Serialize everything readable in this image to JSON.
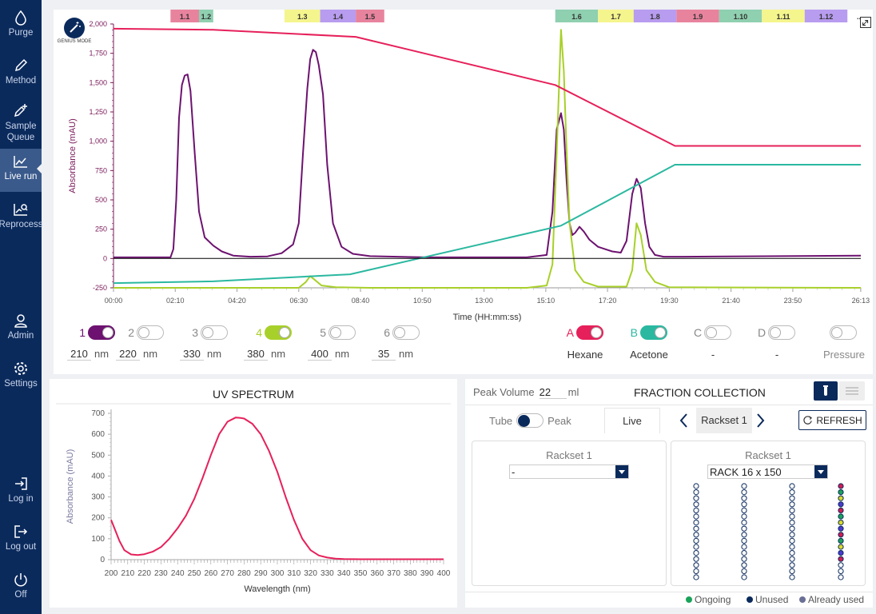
{
  "sidebar": {
    "items": [
      {
        "label": "Purge",
        "icon": "droplet-icon"
      },
      {
        "label": "Method",
        "icon": "pencil-icon"
      },
      {
        "label": "Sample Queue",
        "icon": "pencil-plus-icon"
      },
      {
        "label": "Live run",
        "icon": "line-chart-icon"
      },
      {
        "label": "Reprocess",
        "icon": "chart-search-icon"
      }
    ],
    "bottom": [
      {
        "label": "Admin",
        "icon": "user-icon"
      },
      {
        "label": "Settings",
        "icon": "gear-icon"
      },
      {
        "label": "Log in",
        "icon": "login-icon"
      },
      {
        "label": "Log out",
        "icon": "logout-icon"
      },
      {
        "label": "Off",
        "icon": "power-icon"
      }
    ]
  },
  "genius_mode": {
    "label": "GENIUS MODE",
    "icon": "wand-icon"
  },
  "expand_icon": "expand-icon",
  "fractions": [
    {
      "label": "1.1",
      "color": "#e8839e",
      "start": "02:00",
      "end": "03:00"
    },
    {
      "label": "1.2",
      "color": "#8fd0b0",
      "start": "03:00",
      "end": "03:30"
    },
    {
      "label": "1.3",
      "color": "#f5f58e",
      "start": "06:00",
      "end": "07:15"
    },
    {
      "label": "1.4",
      "color": "#b89cf0",
      "start": "07:15",
      "end": "08:30"
    },
    {
      "label": "1.5",
      "color": "#e8839e",
      "start": "08:30",
      "end": "09:30"
    },
    {
      "label": "1.6",
      "color": "#8fd0b0",
      "start": "15:30",
      "end": "17:00"
    },
    {
      "label": "1.7",
      "color": "#f5f58e",
      "start": "17:00",
      "end": "18:15"
    },
    {
      "label": "1.8",
      "color": "#b89cf0",
      "start": "18:15",
      "end": "19:45"
    },
    {
      "label": "1.9",
      "color": "#e8839e",
      "start": "19:45",
      "end": "21:15"
    },
    {
      "label": "1.10",
      "color": "#8fd0b0",
      "start": "21:15",
      "end": "22:45"
    },
    {
      "label": "1.11",
      "color": "#f5f58e",
      "start": "22:45",
      "end": "24:15"
    },
    {
      "label": "1.12",
      "color": "#b89cf0",
      "start": "24:15",
      "end": "25:45"
    }
  ],
  "fraction_overflow": "..",
  "chart_data": [
    {
      "type": "line",
      "title": "",
      "xlabel": "Time (HH:mm:ss)",
      "ylabel": "Absorbance (mAU)",
      "x_ticks": [
        "00:00",
        "02:10",
        "04:20",
        "06:30",
        "08:40",
        "10:50",
        "13:00",
        "15:10",
        "17:20",
        "19:30",
        "21:40",
        "23:50",
        "26:13"
      ],
      "y_ticks": [
        "2,000",
        "1,750",
        "1,500",
        "1,250",
        "1,000",
        "750",
        "500",
        "250",
        "0",
        "-250"
      ],
      "xlim_minutes": [
        0,
        26.22
      ],
      "ylim": [
        -250,
        2000
      ],
      "series": [
        {
          "color": "#6d1270",
          "x": [
            0,
            2,
            2.1,
            2.2,
            2.3,
            2.4,
            2.5,
            2.6,
            2.7,
            2.85,
            3,
            3.2,
            3.5,
            3.8,
            4.2,
            4.8,
            5.4,
            5.9,
            6.3,
            6.5,
            6.65,
            6.8,
            6.9,
            7.0,
            7.1,
            7.2,
            7.35,
            7.5,
            7.7,
            8.0,
            8.4,
            9,
            11,
            13,
            14.5,
            15.2,
            15.4,
            15.55,
            15.7,
            15.8,
            15.9,
            16.0,
            16.1,
            16.2,
            16.35,
            16.5,
            16.7,
            17.0,
            17.5,
            17.8,
            18.0,
            18.2,
            18.35,
            18.5,
            18.65,
            18.8,
            19.0,
            19.3,
            20,
            26.22
          ],
          "y": [
            10,
            10,
            80,
            500,
            1200,
            1480,
            1560,
            1570,
            1430,
            900,
            400,
            180,
            110,
            60,
            25,
            15,
            18,
            45,
            120,
            300,
            900,
            1450,
            1700,
            1780,
            1760,
            1650,
            1400,
            800,
            300,
            100,
            40,
            20,
            10,
            10,
            10,
            30,
            400,
            1100,
            1240,
            1100,
            650,
            300,
            200,
            220,
            270,
            230,
            160,
            100,
            60,
            50,
            150,
            550,
            680,
            600,
            300,
            100,
            30,
            15,
            15,
            25
          ]
        },
        {
          "color": "#a8d02a",
          "x": [
            0,
            6.5,
            6.75,
            6.9,
            7.05,
            7.3,
            7.8,
            9,
            14.5,
            15.2,
            15.4,
            15.55,
            15.7,
            15.8,
            15.9,
            16.0,
            16.2,
            16.5,
            17,
            18,
            18.2,
            18.35,
            18.5,
            18.7,
            19,
            19.5,
            26.22
          ],
          "y": [
            -250,
            -250,
            -200,
            -150,
            -180,
            -230,
            -245,
            -250,
            -250,
            -230,
            -50,
            900,
            1950,
            1600,
            900,
            300,
            -100,
            -200,
            -240,
            -240,
            -100,
            300,
            200,
            -100,
            -200,
            -245,
            -250
          ]
        },
        {
          "color": "#e6205a",
          "x": [
            0,
            3.5,
            8.5,
            15.5,
            19.7,
            26.22
          ],
          "y": [
            1960,
            1950,
            1890,
            1480,
            960,
            960
          ]
        },
        {
          "color": "#2ab8a0",
          "x": [
            0,
            3.5,
            8.3,
            15.7,
            19.7,
            26.22
          ],
          "y": [
            -210,
            -195,
            -135,
            280,
            800,
            800
          ]
        },
        {
          "color": "#000000",
          "x": [
            0,
            26.22
          ],
          "y": [
            0,
            0
          ]
        }
      ]
    },
    {
      "type": "line",
      "title": "UV SPECTRUM",
      "xlabel": "Wavelength (nm)",
      "ylabel": "Absorbance (mAU)",
      "x_ticks": [
        "200",
        "210",
        "220",
        "230",
        "240",
        "250",
        "260",
        "270",
        "280",
        "290",
        "300",
        "310",
        "320",
        "330",
        "340",
        "350",
        "360",
        "370",
        "380",
        "390",
        "400"
      ],
      "y_ticks": [
        "700",
        "600",
        "500",
        "400",
        "300",
        "200",
        "100",
        "0"
      ],
      "xlim": [
        200,
        400
      ],
      "ylim": [
        0,
        700
      ],
      "series": [
        {
          "color": "#e6205a",
          "x": [
            200,
            202,
            205,
            208,
            212,
            216,
            220,
            225,
            230,
            235,
            240,
            245,
            250,
            255,
            260,
            265,
            270,
            275,
            278,
            280,
            285,
            290,
            295,
            300,
            305,
            310,
            315,
            320,
            325,
            330,
            335,
            340,
            350,
            360,
            380,
            400
          ],
          "y": [
            190,
            150,
            90,
            45,
            25,
            22,
            26,
            38,
            60,
            100,
            150,
            210,
            290,
            390,
            500,
            600,
            660,
            680,
            678,
            675,
            650,
            600,
            520,
            420,
            300,
            190,
            100,
            45,
            20,
            10,
            5,
            3,
            2,
            2,
            2,
            2
          ]
        }
      ]
    }
  ],
  "detectors": [
    {
      "num": "1",
      "on": true,
      "color": "#6d1270",
      "nm": "210"
    },
    {
      "num": "2",
      "on": false,
      "color": "#888888",
      "nm": "220"
    },
    {
      "num": "3",
      "on": false,
      "color": "#888888",
      "nm": "330"
    },
    {
      "num": "4",
      "on": true,
      "color": "#a8d02a",
      "nm": "380"
    },
    {
      "num": "5",
      "on": false,
      "color": "#888888",
      "nm": "400"
    },
    {
      "num": "6",
      "on": false,
      "color": "#888888",
      "nm": "35"
    }
  ],
  "nm_unit": "nm",
  "solvents": [
    {
      "letter": "A",
      "on": true,
      "color": "#e6205a",
      "name": "Hexane"
    },
    {
      "letter": "B",
      "on": true,
      "color": "#2ab8a0",
      "name": "Acetone"
    },
    {
      "letter": "C",
      "on": false,
      "color": "#888888",
      "name": "-"
    },
    {
      "letter": "D",
      "on": false,
      "color": "#888888",
      "name": "-"
    }
  ],
  "pressure": {
    "name": "Pressure",
    "on": false
  },
  "fraction_collection": {
    "peak_volume_label": "Peak Volume",
    "peak_volume_value": "22",
    "unit": "ml",
    "title": "FRACTION COLLECTION",
    "tube_label": "Tube",
    "peak_label": "Peak",
    "live_tab": "Live",
    "rackset_tab": "Rackset 1",
    "refresh_label": "REFRESH",
    "left_rack": {
      "title": "Rackset 1",
      "select": "-"
    },
    "right_rack": {
      "title": "Rackset 1",
      "select": "RACK 16 x 150"
    },
    "legend": [
      {
        "label": "Ongoing",
        "color": "#19a35a"
      },
      {
        "label": "Unused",
        "color": "#0b2a5c"
      },
      {
        "label": "Already used",
        "color": "#6a6f96"
      }
    ],
    "tube_column_colored": [
      "#d11c52",
      "#19a35a",
      "#d9d92a",
      "#4a3ad0",
      "#d11c52",
      "#19a35a",
      "#d9d92a",
      "#4a3ad0",
      "#d11c52",
      "#19a35a",
      "#d9d92a",
      "#4a3ad0",
      "#d11c52",
      "#ffffff",
      "#ffffff",
      "#ffffff"
    ]
  }
}
